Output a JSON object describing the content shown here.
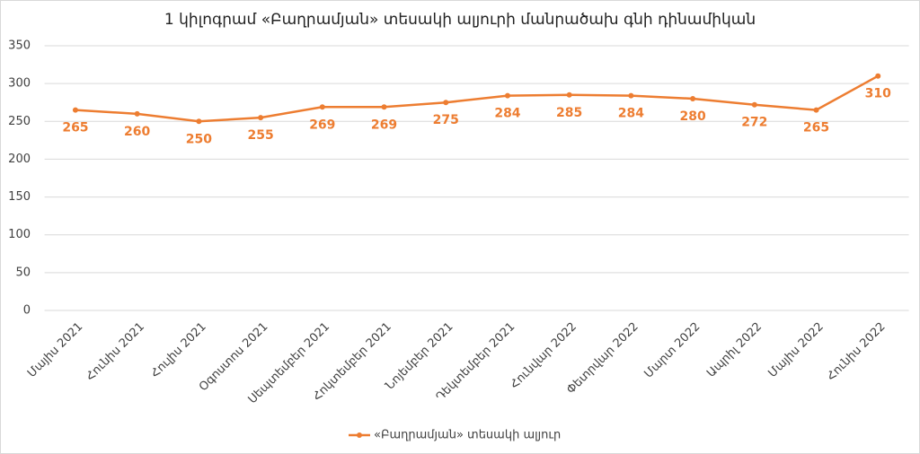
{
  "chart_data": {
    "type": "line",
    "title": "1 կիլոգրամ «Բաղրամյան» տեսակի ալյուրի մանրածախ գնի դինամիկան",
    "categories": [
      "Մայիս 2021",
      "Հունիս 2021",
      "Հուլիս 2021",
      "Օգոստոս 2021",
      "Սեպտեմբեր 2021",
      "Հոկտեմբեր 2021",
      "Նոյեմբեր 2021",
      "Դեկտեմբեր 2021",
      "Հունվար 2022",
      "Փետրվար 2022",
      "Մարտ 2022",
      "Ապրիլ 2022",
      "Մայիս 2022",
      "Հունիս 2022"
    ],
    "series": [
      {
        "name": "«Բաղրամյան» տեսակի ալյուր",
        "color": "#ed7d31",
        "values": [
          265,
          260,
          250,
          255,
          269,
          269,
          275,
          284,
          285,
          284,
          280,
          272,
          265,
          310
        ]
      }
    ],
    "ylim": [
      0,
      350
    ],
    "yticks": [
      0,
      50,
      100,
      150,
      200,
      250,
      300,
      350
    ],
    "grid": true,
    "legend": "bottom",
    "data_labels": true
  }
}
